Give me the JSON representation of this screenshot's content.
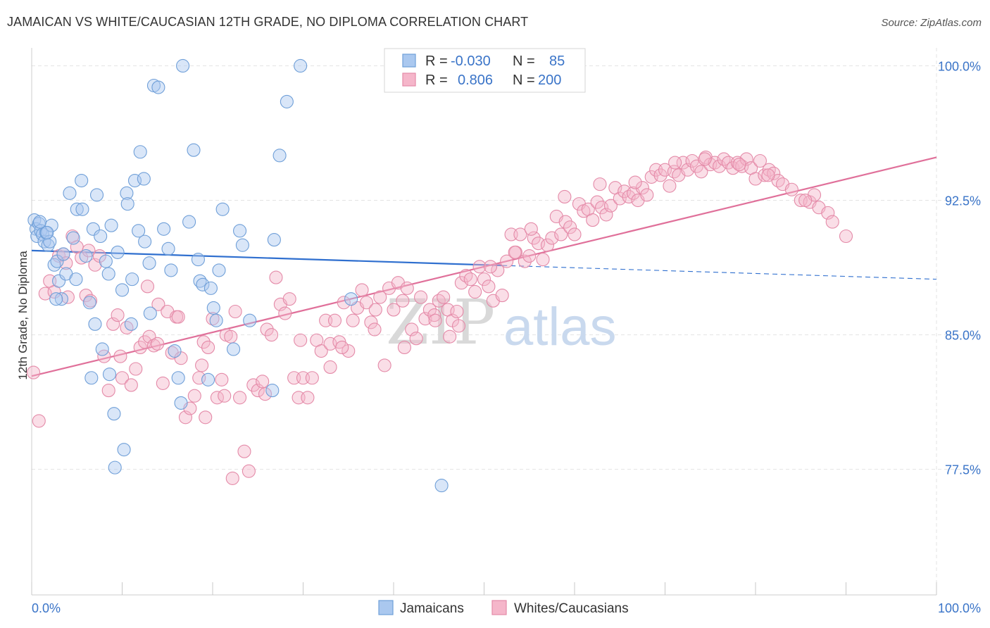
{
  "title": "JAMAICAN VS WHITE/CAUCASIAN 12TH GRADE, NO DIPLOMA CORRELATION CHART",
  "source": "Source: ZipAtlas.com",
  "watermark": {
    "zip": "ZIP",
    "atlas": "atlas"
  },
  "colors": {
    "blue_fill": "#aac8ef",
    "blue_stroke": "#6f9fd8",
    "blue_line": "#2f6fcf",
    "pink_fill": "#f5b6ca",
    "pink_stroke": "#e48aa8",
    "pink_line": "#e0709a",
    "tick_text": "#3a74c8",
    "grid": "#e3e3e3"
  },
  "legend": {
    "rows": [
      {
        "r_label": "R =",
        "r_value": "-0.030",
        "n_label": "N =",
        "n_value": "85"
      },
      {
        "r_label": "R =",
        "r_value": "0.806",
        "n_label": "N =",
        "n_value": "200"
      }
    ]
  },
  "bottom_legend": [
    "Jamaicans",
    "Whites/Caucasians"
  ],
  "chart_data": {
    "type": "scatter",
    "title": "JAMAICAN VS WHITE/CAUCASIAN 12TH GRADE, NO DIPLOMA CORRELATION CHART",
    "xlabel": "",
    "ylabel": "12th Grade, No Diploma",
    "xlim": [
      0,
      100
    ],
    "ylim": [
      70.5,
      101
    ],
    "x_tick_labels": [
      "0.0%",
      "100.0%"
    ],
    "y_ticks": [
      77.5,
      85.0,
      92.5,
      100.0
    ],
    "y_tick_labels": [
      "77.5%",
      "85.0%",
      "92.5%",
      "100.0%"
    ],
    "grid": true,
    "legend_position": "top-center",
    "series": [
      {
        "name": "Jamaicans",
        "r": -0.03,
        "n": 85,
        "trend": {
          "x0": 0,
          "y0": 89.7,
          "x1": 100,
          "y1": 88.1,
          "solid_until": 52
        },
        "points": [
          [
            0.3,
            91.4
          ],
          [
            0.5,
            90.9
          ],
          [
            0.6,
            90.5
          ],
          [
            0.8,
            91.2
          ],
          [
            1.0,
            90.8
          ],
          [
            1.2,
            90.6
          ],
          [
            1.4,
            90.2
          ],
          [
            1.6,
            90.7
          ],
          [
            1.8,
            90.0
          ],
          [
            2.0,
            90.2
          ],
          [
            2.2,
            91.1
          ],
          [
            2.5,
            88.9
          ],
          [
            2.8,
            89.1
          ],
          [
            3.0,
            88.0
          ],
          [
            3.3,
            87.0
          ],
          [
            3.8,
            88.4
          ],
          [
            4.2,
            92.9
          ],
          [
            4.6,
            90.4
          ],
          [
            5.0,
            92.0
          ],
          [
            5.5,
            93.6
          ],
          [
            6.0,
            89.4
          ],
          [
            6.4,
            86.8
          ],
          [
            6.8,
            90.9
          ],
          [
            7.2,
            92.8
          ],
          [
            7.6,
            90.5
          ],
          [
            8.2,
            89.1
          ],
          [
            8.5,
            88.4
          ],
          [
            8.8,
            91.1
          ],
          [
            9.5,
            89.6
          ],
          [
            10.0,
            87.5
          ],
          [
            10.5,
            92.9
          ],
          [
            10.6,
            92.3
          ],
          [
            11.0,
            85.6
          ],
          [
            11.1,
            88.1
          ],
          [
            11.4,
            93.6
          ],
          [
            11.8,
            90.8
          ],
          [
            12.4,
            93.7
          ],
          [
            12.0,
            95.2
          ],
          [
            12.5,
            90.2
          ],
          [
            13.0,
            89.0
          ],
          [
            13.1,
            86.2
          ],
          [
            13.5,
            98.9
          ],
          [
            14.0,
            98.8
          ],
          [
            14.6,
            90.9
          ],
          [
            15.1,
            89.8
          ],
          [
            15.4,
            88.6
          ],
          [
            15.8,
            84.1
          ],
          [
            16.2,
            82.6
          ],
          [
            16.5,
            81.2
          ],
          [
            16.7,
            100.0
          ],
          [
            17.4,
            91.3
          ],
          [
            17.9,
            95.3
          ],
          [
            18.4,
            89.2
          ],
          [
            18.6,
            88.0
          ],
          [
            18.9,
            87.8
          ],
          [
            19.5,
            82.5
          ],
          [
            19.8,
            87.6
          ],
          [
            20.1,
            86.5
          ],
          [
            20.4,
            85.8
          ],
          [
            20.7,
            88.6
          ],
          [
            21.1,
            92.0
          ],
          [
            22.3,
            84.2
          ],
          [
            23.0,
            90.8
          ],
          [
            23.3,
            90.0
          ],
          [
            24.1,
            85.8
          ],
          [
            26.6,
            81.9
          ],
          [
            26.8,
            90.3
          ],
          [
            27.4,
            95.0
          ],
          [
            28.2,
            98.0
          ],
          [
            29.7,
            100.0
          ],
          [
            35.3,
            87.0
          ],
          [
            45.3,
            76.6
          ],
          [
            6.6,
            82.6
          ],
          [
            7.8,
            84.2
          ],
          [
            8.6,
            82.8
          ],
          [
            9.1,
            80.6
          ],
          [
            9.2,
            77.6
          ],
          [
            10.2,
            78.6
          ],
          [
            0.9,
            91.3
          ],
          [
            1.7,
            90.7
          ],
          [
            2.7,
            87.0
          ],
          [
            3.5,
            89.5
          ],
          [
            4.9,
            88.1
          ],
          [
            5.6,
            92.0
          ],
          [
            7.0,
            85.6
          ]
        ]
      },
      {
        "name": "Whites/Caucasians",
        "r": 0.806,
        "n": 200,
        "trend": {
          "x0": 0,
          "y0": 82.7,
          "x1": 100,
          "y1": 94.9
        },
        "points": [
          [
            0.2,
            82.9
          ],
          [
            0.8,
            80.2
          ],
          [
            1.5,
            87.3
          ],
          [
            2.0,
            88.0
          ],
          [
            2.5,
            87.4
          ],
          [
            3.0,
            89.4
          ],
          [
            3.5,
            89.5
          ],
          [
            4.0,
            87.1
          ],
          [
            4.5,
            90.5
          ],
          [
            5.0,
            89.9
          ],
          [
            5.5,
            89.3
          ],
          [
            6.0,
            87.2
          ],
          [
            6.5,
            86.9
          ],
          [
            7.0,
            88.9
          ],
          [
            7.5,
            89.4
          ],
          [
            8.0,
            83.8
          ],
          [
            8.5,
            81.9
          ],
          [
            9.0,
            85.6
          ],
          [
            9.5,
            86.1
          ],
          [
            10.0,
            82.6
          ],
          [
            10.5,
            85.4
          ],
          [
            11.0,
            82.2
          ],
          [
            11.5,
            83.1
          ],
          [
            12.0,
            84.3
          ],
          [
            12.5,
            84.6
          ],
          [
            13.0,
            84.9
          ],
          [
            13.5,
            84.4
          ],
          [
            14.0,
            86.7
          ],
          [
            14.5,
            82.3
          ],
          [
            15.0,
            86.3
          ],
          [
            15.5,
            84.0
          ],
          [
            16.0,
            86.0
          ],
          [
            16.5,
            83.7
          ],
          [
            17.0,
            80.4
          ],
          [
            17.5,
            80.9
          ],
          [
            18.0,
            81.6
          ],
          [
            18.5,
            82.6
          ],
          [
            19.0,
            84.6
          ],
          [
            19.5,
            84.3
          ],
          [
            20.0,
            85.9
          ],
          [
            20.5,
            81.5
          ],
          [
            21.0,
            82.5
          ],
          [
            21.5,
            85.0
          ],
          [
            22.0,
            84.9
          ],
          [
            22.5,
            86.3
          ],
          [
            23.0,
            81.5
          ],
          [
            23.5,
            78.5
          ],
          [
            24.0,
            77.4
          ],
          [
            24.5,
            82.2
          ],
          [
            25.0,
            81.9
          ],
          [
            25.5,
            82.4
          ],
          [
            26.0,
            85.3
          ],
          [
            26.5,
            85.0
          ],
          [
            27.0,
            88.2
          ],
          [
            27.5,
            86.7
          ],
          [
            28.0,
            86.2
          ],
          [
            28.5,
            87.0
          ],
          [
            29.0,
            82.6
          ],
          [
            29.5,
            81.5
          ],
          [
            30.0,
            82.6
          ],
          [
            30.5,
            81.5
          ],
          [
            31.0,
            82.6
          ],
          [
            31.5,
            84.7
          ],
          [
            32.0,
            84.1
          ],
          [
            32.5,
            85.8
          ],
          [
            33.0,
            84.5
          ],
          [
            33.5,
            85.8
          ],
          [
            34.0,
            84.6
          ],
          [
            34.5,
            86.8
          ],
          [
            35.0,
            84.1
          ],
          [
            35.5,
            85.8
          ],
          [
            36.0,
            86.5
          ],
          [
            36.5,
            87.5
          ],
          [
            37.0,
            86.8
          ],
          [
            37.5,
            85.7
          ],
          [
            38.0,
            86.4
          ],
          [
            38.5,
            87.1
          ],
          [
            39.0,
            83.3
          ],
          [
            39.5,
            87.6
          ],
          [
            40.0,
            86.4
          ],
          [
            40.5,
            87.9
          ],
          [
            41.0,
            86.9
          ],
          [
            41.5,
            87.6
          ],
          [
            42.0,
            85.3
          ],
          [
            42.5,
            84.8
          ],
          [
            43.0,
            87.1
          ],
          [
            43.5,
            85.9
          ],
          [
            44.0,
            86.4
          ],
          [
            44.5,
            86.1
          ],
          [
            45.0,
            86.9
          ],
          [
            45.5,
            87.1
          ],
          [
            46.0,
            86.4
          ],
          [
            46.5,
            85.8
          ],
          [
            47.0,
            86.3
          ],
          [
            47.5,
            87.9
          ],
          [
            48.0,
            88.3
          ],
          [
            48.5,
            88.1
          ],
          [
            49.0,
            87.4
          ],
          [
            49.5,
            88.8
          ],
          [
            50.0,
            88.1
          ],
          [
            50.5,
            87.7
          ],
          [
            51.0,
            86.9
          ],
          [
            51.5,
            88.6
          ],
          [
            52.0,
            87.2
          ],
          [
            52.5,
            89.1
          ],
          [
            53.0,
            90.6
          ],
          [
            53.5,
            89.6
          ],
          [
            54.0,
            90.6
          ],
          [
            54.5,
            89.1
          ],
          [
            55.0,
            89.4
          ],
          [
            55.5,
            90.4
          ],
          [
            56.0,
            90.1
          ],
          [
            56.5,
            89.2
          ],
          [
            57.0,
            90.0
          ],
          [
            57.5,
            90.4
          ],
          [
            58.0,
            91.6
          ],
          [
            58.5,
            90.6
          ],
          [
            59.0,
            91.3
          ],
          [
            59.5,
            91.0
          ],
          [
            60.0,
            90.6
          ],
          [
            60.5,
            92.3
          ],
          [
            61.0,
            91.9
          ],
          [
            61.5,
            92.0
          ],
          [
            62.0,
            91.4
          ],
          [
            62.5,
            92.4
          ],
          [
            63.0,
            92.1
          ],
          [
            63.5,
            91.7
          ],
          [
            64.0,
            92.2
          ],
          [
            64.5,
            93.2
          ],
          [
            65.0,
            92.6
          ],
          [
            65.5,
            93.0
          ],
          [
            66.0,
            92.7
          ],
          [
            66.5,
            92.9
          ],
          [
            67.0,
            92.5
          ],
          [
            67.5,
            93.2
          ],
          [
            68.0,
            92.8
          ],
          [
            68.5,
            93.8
          ],
          [
            69.0,
            94.2
          ],
          [
            69.5,
            93.9
          ],
          [
            70.0,
            94.2
          ],
          [
            70.5,
            93.3
          ],
          [
            71.0,
            94.1
          ],
          [
            71.5,
            93.9
          ],
          [
            72.0,
            94.6
          ],
          [
            72.5,
            94.2
          ],
          [
            73.0,
            94.7
          ],
          [
            73.5,
            94.4
          ],
          [
            74.0,
            94.1
          ],
          [
            74.5,
            94.9
          ],
          [
            75.0,
            94.5
          ],
          [
            75.5,
            94.6
          ],
          [
            76.0,
            94.4
          ],
          [
            76.5,
            94.8
          ],
          [
            77.0,
            94.6
          ],
          [
            77.5,
            94.3
          ],
          [
            78.0,
            94.6
          ],
          [
            78.5,
            94.4
          ],
          [
            79.0,
            94.8
          ],
          [
            79.5,
            94.3
          ],
          [
            80.0,
            93.7
          ],
          [
            80.5,
            94.7
          ],
          [
            81.0,
            93.9
          ],
          [
            81.5,
            94.2
          ],
          [
            82.0,
            94.0
          ],
          [
            82.5,
            93.6
          ],
          [
            83.0,
            93.4
          ],
          [
            84.0,
            93.1
          ],
          [
            85.0,
            92.5
          ],
          [
            86.0,
            92.4
          ],
          [
            86.5,
            92.8
          ],
          [
            87.0,
            92.1
          ],
          [
            88.0,
            91.8
          ],
          [
            88.5,
            91.3
          ],
          [
            90.0,
            90.5
          ],
          [
            3.8,
            89.0
          ],
          [
            6.3,
            89.7
          ],
          [
            9.8,
            83.8
          ],
          [
            12.8,
            87.7
          ],
          [
            16.2,
            86.0
          ],
          [
            18.8,
            83.3
          ],
          [
            21.3,
            81.6
          ],
          [
            25.8,
            81.7
          ],
          [
            29.7,
            84.7
          ],
          [
            34.3,
            84.3
          ],
          [
            37.9,
            85.3
          ],
          [
            41.2,
            84.3
          ],
          [
            44.6,
            85.8
          ],
          [
            47.2,
            85.5
          ],
          [
            50.7,
            88.8
          ],
          [
            55.2,
            90.9
          ],
          [
            58.9,
            92.7
          ],
          [
            62.8,
            93.4
          ],
          [
            66.7,
            93.5
          ],
          [
            71.1,
            94.6
          ],
          [
            74.4,
            94.8
          ],
          [
            78.2,
            94.5
          ],
          [
            81.4,
            93.9
          ],
          [
            85.5,
            92.5
          ],
          [
            22.2,
            77.0
          ],
          [
            13.9,
            84.5
          ],
          [
            19.2,
            80.4
          ],
          [
            33.0,
            83.2
          ],
          [
            46.2,
            84.9
          ],
          [
            53.4,
            89.6
          ]
        ]
      }
    ]
  }
}
